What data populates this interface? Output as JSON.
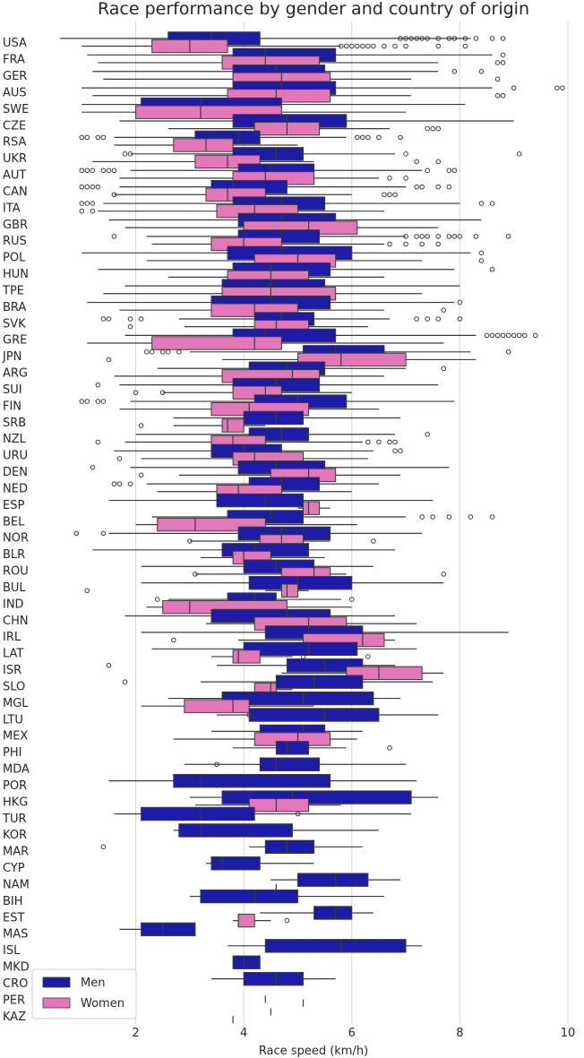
{
  "chart_data": {
    "type": "boxplot",
    "title": "Race performance by gender and country of origin",
    "xlabel": "Race speed (km/h)",
    "ylabel": "",
    "xlim": [
      0.15,
      10.1
    ],
    "xticks": [
      2,
      4,
      6,
      8,
      10
    ],
    "grid": "vertical",
    "orientation": "horizontal",
    "legend": {
      "placement": "bottom-left"
    },
    "series": [
      {
        "name": "Men",
        "color": "#1c1ca8"
      },
      {
        "name": "Women",
        "color": "#e377b8"
      }
    ],
    "categories": [
      "USA",
      "FRA",
      "GER",
      "AUS",
      "SWE",
      "CZE",
      "RSA",
      "UKR",
      "AUT",
      "CAN",
      "ITA",
      "GBR",
      "RUS",
      "POL",
      "HUN",
      "TPE",
      "BRA",
      "SVK",
      "GRE",
      "JPN",
      "ARG",
      "SUI",
      "FIN",
      "SRB",
      "NZL",
      "URU",
      "DEN",
      "NED",
      "ESP",
      "BEL",
      "NOR",
      "BLR",
      "ROU",
      "BUL",
      "IND",
      "CHN",
      "IRL",
      "LAT",
      "ISR",
      "SLO",
      "MGL",
      "LTU",
      "MEX",
      "PHI",
      "MDA",
      "POR",
      "HKG",
      "TUR",
      "KOR",
      "MAR",
      "CYP",
      "NAM",
      "BIH",
      "EST",
      "MAS",
      "ISL",
      "MKD",
      "CRO",
      "PER",
      "KAZ"
    ],
    "boxes": [
      {
        "men": [
          0.6,
          2.6,
          3.4,
          4.3,
          8.2,
          [
            6.9,
            7.0,
            7.1,
            7.2,
            7.3,
            7.4,
            7.6,
            7.8,
            7.9,
            8.1,
            8.3,
            8.6,
            8.8
          ]
        ],
        "women": [
          1.0,
          2.3,
          3.0,
          3.7,
          5.8,
          [
            5.8,
            5.9,
            6.0,
            6.1,
            6.2,
            6.3,
            6.4,
            6.6,
            6.8,
            7.0,
            7.6,
            8.1
          ]
        ]
      },
      {
        "men": [
          1.1,
          3.8,
          4.4,
          5.7,
          8.6,
          [
            8.8
          ]
        ],
        "women": [
          1.3,
          3.6,
          4.4,
          5.4,
          7.6,
          [
            8.7,
            8.8
          ]
        ]
      },
      {
        "men": [
          1.2,
          3.8,
          4.6,
          5.5,
          7.6,
          [
            7.9,
            8.4
          ]
        ],
        "women": [
          1.4,
          3.8,
          4.7,
          5.6,
          7.1,
          [
            8.7
          ]
        ]
      },
      {
        "men": [
          1.0,
          3.8,
          4.7,
          5.7,
          8.6,
          [
            9.0,
            9.8,
            9.9
          ]
        ],
        "women": [
          1.2,
          3.7,
          4.6,
          5.6,
          7.1,
          [
            8.7,
            8.8
          ]
        ]
      },
      {
        "men": [
          1.0,
          2.1,
          3.2,
          4.7,
          8.1,
          []
        ],
        "women": [
          1.0,
          2.0,
          3.2,
          4.7,
          7.0,
          []
        ]
      },
      {
        "men": [
          1.7,
          3.8,
          4.8,
          5.9,
          9.0,
          []
        ],
        "women": [
          2.6,
          4.2,
          4.8,
          5.4,
          6.7,
          [
            7.4,
            7.5,
            7.6
          ]
        ]
      },
      {
        "men": [
          1.6,
          3.1,
          3.9,
          4.3,
          5.9,
          [
            1.0,
            1.1,
            1.3,
            1.4,
            6.1,
            6.2,
            6.3,
            6.5,
            6.9
          ]
        ],
        "women": [
          1.6,
          2.7,
          3.3,
          3.8,
          5.0,
          []
        ]
      },
      {
        "men": [
          1.9,
          3.8,
          4.6,
          5.1,
          6.8,
          [
            1.8,
            1.9,
            7.0,
            9.1
          ]
        ],
        "women": [
          1.2,
          3.1,
          3.7,
          4.3,
          5.3,
          [
            7.2,
            7.6
          ]
        ]
      },
      {
        "men": [
          1.9,
          3.9,
          4.5,
          5.3,
          7.3,
          [
            1.0,
            1.1,
            1.2,
            1.4,
            1.5,
            1.6,
            7.4,
            7.8,
            7.9
          ]
        ],
        "women": [
          1.7,
          3.8,
          4.4,
          5.3,
          6.5,
          [
            6.7,
            7.0
          ]
        ]
      },
      {
        "men": [
          1.7,
          3.4,
          3.8,
          4.8,
          7.0,
          [
            1.0,
            1.1,
            1.2,
            1.3,
            7.2,
            7.3,
            7.6,
            7.8
          ]
        ],
        "women": [
          1.6,
          3.3,
          3.7,
          4.4,
          6.0,
          [
            1.6,
            6.6,
            6.7,
            6.8
          ]
        ]
      },
      {
        "men": [
          1.4,
          3.8,
          4.7,
          5.5,
          8.0,
          [
            1.0,
            1.1,
            1.2,
            8.4,
            8.6
          ]
        ],
        "women": [
          1.3,
          3.5,
          4.2,
          5.0,
          6.6,
          [
            1.0,
            1.2
          ]
        ]
      },
      {
        "men": [
          1.5,
          3.9,
          4.7,
          5.7,
          8.4,
          []
        ],
        "women": [
          1.8,
          4.0,
          5.2,
          6.1,
          7.6,
          []
        ]
      },
      {
        "men": [
          2.2,
          3.9,
          4.7,
          5.4,
          7.0,
          [
            7.0,
            7.2,
            7.3,
            7.4,
            7.6,
            7.8,
            7.9,
            8.0,
            8.3,
            8.9,
            1.6
          ]
        ],
        "women": [
          2.3,
          3.4,
          4.0,
          4.7,
          6.6,
          [
            6.7,
            7.0,
            7.3,
            7.6
          ]
        ]
      },
      {
        "men": [
          1.0,
          3.7,
          4.7,
          6.0,
          8.2,
          [
            8.4
          ]
        ],
        "women": [
          2.2,
          4.2,
          5.0,
          5.7,
          7.3,
          [
            8.4
          ]
        ]
      },
      {
        "men": [
          1.3,
          3.8,
          4.5,
          5.6,
          7.9,
          [
            8.6
          ]
        ],
        "women": [
          2.6,
          3.7,
          4.5,
          5.2,
          6.6,
          []
        ]
      },
      {
        "men": [
          1.8,
          3.6,
          4.5,
          5.5,
          8.0,
          []
        ],
        "women": [
          1.4,
          3.6,
          4.5,
          5.7,
          7.3,
          []
        ]
      },
      {
        "men": [
          1.1,
          3.4,
          4.5,
          5.6,
          7.9,
          [
            8.0
          ]
        ],
        "women": [
          1.7,
          3.4,
          4.2,
          5.0,
          6.6,
          [
            7.7
          ]
        ]
      },
      {
        "men": [
          2.8,
          4.2,
          4.7,
          5.3,
          6.7,
          [
            1.4,
            1.5,
            1.9,
            2.1,
            7.2,
            7.4,
            7.6,
            8.0
          ]
        ],
        "women": [
          2.9,
          4.2,
          4.6,
          5.2,
          6.3,
          [
            1.9
          ]
        ]
      },
      {
        "men": [
          1.8,
          3.8,
          4.4,
          5.7,
          8.3,
          [
            8.5,
            8.6,
            8.7,
            8.8,
            8.9,
            9.0,
            9.1,
            9.2,
            9.4
          ]
        ],
        "women": [
          1.1,
          2.3,
          4.2,
          4.7,
          7.7,
          []
        ]
      },
      {
        "men": [
          3.0,
          5.1,
          5.7,
          6.6,
          8.2,
          [
            2.2,
            2.3,
            2.5,
            2.6,
            2.8,
            8.9
          ]
        ],
        "women": [
          3.6,
          5.0,
          5.8,
          7.0,
          8.3,
          [
            1.5
          ]
        ]
      },
      {
        "men": [
          2.4,
          4.1,
          4.8,
          5.5,
          7.0,
          [
            7.7
          ]
        ],
        "women": [
          1.6,
          3.6,
          4.9,
          5.4,
          6.6,
          []
        ]
      },
      {
        "men": [
          1.7,
          3.8,
          4.6,
          5.4,
          7.6,
          [
            1.3
          ]
        ],
        "women": [
          2.5,
          3.8,
          4.4,
          4.7,
          6.0,
          [
            2.0,
            2.5
          ]
        ]
      },
      {
        "men": [
          1.9,
          4.2,
          5.0,
          5.9,
          7.9,
          [
            1.0,
            1.1,
            1.3,
            1.4
          ]
        ],
        "women": [
          1.7,
          3.4,
          4.1,
          5.2,
          6.5,
          []
        ]
      },
      {
        "men": [
          2.7,
          4.0,
          4.6,
          5.1,
          6.9,
          []
        ],
        "women": [
          2.7,
          3.6,
          3.7,
          4.0,
          4.4,
          [
            2.1
          ]
        ]
      },
      {
        "men": [
          2.0,
          4.1,
          4.7,
          5.2,
          6.8,
          [
            7.4
          ]
        ],
        "women": [
          1.8,
          3.4,
          3.8,
          4.4,
          6.2,
          [
            1.3,
            6.3,
            6.5,
            6.7,
            6.8
          ]
        ]
      },
      {
        "men": [
          1.6,
          3.4,
          4.0,
          4.7,
          6.4,
          [
            6.8,
            6.9
          ]
        ],
        "women": [
          2.1,
          3.8,
          4.2,
          5.1,
          6.3,
          [
            1.7
          ]
        ]
      },
      {
        "men": [
          1.9,
          3.9,
          4.6,
          5.5,
          7.8,
          [
            1.2
          ]
        ],
        "women": [
          2.8,
          4.5,
          5.2,
          5.7,
          6.9,
          [
            2.1
          ]
        ]
      },
      {
        "men": [
          2.2,
          4.1,
          4.7,
          5.4,
          6.5,
          [
            1.6,
            1.7,
            1.9
          ]
        ],
        "women": [
          2.4,
          3.5,
          3.9,
          4.7,
          6.0,
          []
        ]
      },
      {
        "men": [
          1.5,
          3.5,
          4.4,
          5.1,
          7.5,
          []
        ],
        "women": [
          5.0,
          5.1,
          5.2,
          5.4,
          5.6,
          []
        ]
      },
      {
        "men": [
          2.3,
          3.7,
          4.5,
          5.1,
          7.0,
          [
            7.3,
            7.5,
            7.8,
            8.2,
            8.6
          ]
        ],
        "women": [
          2.0,
          2.4,
          3.1,
          4.4,
          6.1,
          []
        ]
      },
      {
        "men": [
          1.5,
          3.9,
          4.7,
          5.6,
          7.3,
          [
            0.9,
            1.4
          ]
        ],
        "women": [
          3.0,
          4.3,
          4.7,
          5.1,
          5.6,
          [
            6.4,
            3.0
          ]
        ]
      },
      {
        "men": [
          1.2,
          3.6,
          4.2,
          5.2,
          6.8,
          []
        ],
        "women": [
          3.2,
          3.8,
          4.0,
          4.5,
          5.5,
          []
        ]
      },
      {
        "men": [
          2.1,
          4.0,
          4.6,
          5.3,
          6.4,
          []
        ],
        "women": [
          3.1,
          4.7,
          5.3,
          5.6,
          5.9,
          [
            7.7,
            3.1
          ]
        ]
      },
      {
        "men": [
          2.1,
          4.1,
          5.0,
          6.0,
          7.7,
          []
        ],
        "women": [
          4.4,
          4.7,
          4.8,
          5.0,
          5.2,
          [
            1.1
          ]
        ]
      },
      {
        "men": [
          2.6,
          3.7,
          4.2,
          4.6,
          5.8,
          [
            2.4,
            6.0
          ]
        ],
        "women": [
          2.2,
          2.5,
          3.0,
          4.8,
          6.0,
          []
        ]
      },
      {
        "men": [
          1.8,
          3.4,
          4.8,
          5.6,
          6.8,
          []
        ],
        "women": [
          3.3,
          4.2,
          5.2,
          5.9,
          7.2,
          []
        ]
      },
      {
        "men": [
          2.1,
          4.4,
          5.2,
          6.2,
          8.9,
          []
        ],
        "women": [
          3.9,
          5.1,
          6.2,
          6.6,
          6.8,
          [
            2.7
          ]
        ]
      },
      {
        "men": [
          2.3,
          4.0,
          5.2,
          6.1,
          7.2,
          []
        ],
        "women": [
          3.4,
          3.8,
          3.9,
          4.3,
          4.9,
          [
            5.1,
            6.3
          ]
        ]
      },
      {
        "men": [
          3.5,
          4.8,
          5.5,
          6.2,
          6.8,
          [
            1.5
          ]
        ],
        "women": [
          4.7,
          5.9,
          6.5,
          7.3,
          7.7,
          []
        ]
      },
      {
        "men": [
          3.2,
          4.6,
          5.3,
          6.2,
          7.5,
          [
            1.8
          ]
        ],
        "women": [
          4.2,
          4.2,
          4.5,
          4.6,
          4.9,
          []
        ]
      },
      {
        "men": [
          2.6,
          3.6,
          5.1,
          6.4,
          6.9,
          []
        ],
        "women": [
          2.1,
          2.9,
          3.8,
          4.1,
          5.3,
          []
        ]
      },
      {
        "men": [
          3.5,
          4.1,
          5.5,
          6.5,
          7.6,
          [
            4.1
          ]
        ],
        "women": []
      },
      {
        "men": [
          3.4,
          4.3,
          5.1,
          5.5,
          6.2,
          []
        ],
        "women": [
          2.7,
          4.2,
          5.0,
          5.6,
          6.1,
          []
        ]
      },
      {
        "men": [
          3.8,
          4.6,
          4.8,
          5.2,
          5.9,
          [
            6.7
          ]
        ],
        "women": []
      },
      {
        "men": [
          2.9,
          4.3,
          4.6,
          5.4,
          7.0,
          [
            3.5
          ]
        ],
        "women": []
      },
      {
        "men": [
          1.5,
          2.7,
          3.2,
          5.6,
          7.2,
          []
        ],
        "women": []
      },
      {
        "men": [
          3.0,
          3.6,
          4.9,
          7.1,
          7.6,
          []
        ],
        "women": [
          3.1,
          4.1,
          4.6,
          5.2,
          5.8,
          []
        ]
      },
      {
        "men": [
          1.6,
          2.1,
          3.2,
          4.2,
          7.1,
          [
            5.0
          ]
        ],
        "women": []
      },
      {
        "men": [
          2.7,
          2.8,
          3.2,
          4.9,
          6.5,
          []
        ],
        "women": []
      },
      {
        "men": [
          4.1,
          4.4,
          4.8,
          5.3,
          6.2,
          [
            1.4
          ]
        ],
        "women": []
      },
      {
        "men": [
          3.3,
          3.4,
          3.6,
          4.3,
          5.3,
          []
        ],
        "women": []
      },
      {
        "men": [
          4.5,
          5.0,
          5.7,
          6.3,
          6.9,
          []
        ],
        "women": [
          4.6,
          4.6,
          4.6,
          4.6,
          4.6,
          []
        ]
      },
      {
        "men": [
          3.0,
          3.2,
          4.2,
          5.0,
          6.6,
          []
        ],
        "women": []
      },
      {
        "men": [
          4.3,
          5.3,
          5.7,
          6.0,
          6.4,
          []
        ],
        "women": [
          3.8,
          3.9,
          3.9,
          4.2,
          4.5,
          [
            4.8
          ]
        ]
      },
      {
        "men": [
          1.7,
          2.1,
          2.5,
          3.1,
          3.1,
          []
        ],
        "women": []
      },
      {
        "men": [
          3.7,
          4.4,
          5.8,
          7.0,
          7.3,
          []
        ],
        "women": []
      },
      {
        "men": [
          3.8,
          3.8,
          4.0,
          4.3,
          4.3,
          []
        ],
        "women": []
      },
      {
        "men": [
          3.4,
          4.0,
          4.6,
          5.1,
          5.7,
          []
        ],
        "women": []
      },
      {
        "men": [],
        "women": [
          5.1,
          5.1,
          5.1,
          5.1,
          5.1,
          []
        ],
        "extra": [
          4.4
        ]
      },
      {
        "men": [
          4.5,
          4.5,
          4.5,
          4.5,
          4.5,
          []
        ],
        "women": [
          3.8,
          3.8,
          3.8,
          3.8,
          3.8,
          []
        ]
      }
    ]
  }
}
